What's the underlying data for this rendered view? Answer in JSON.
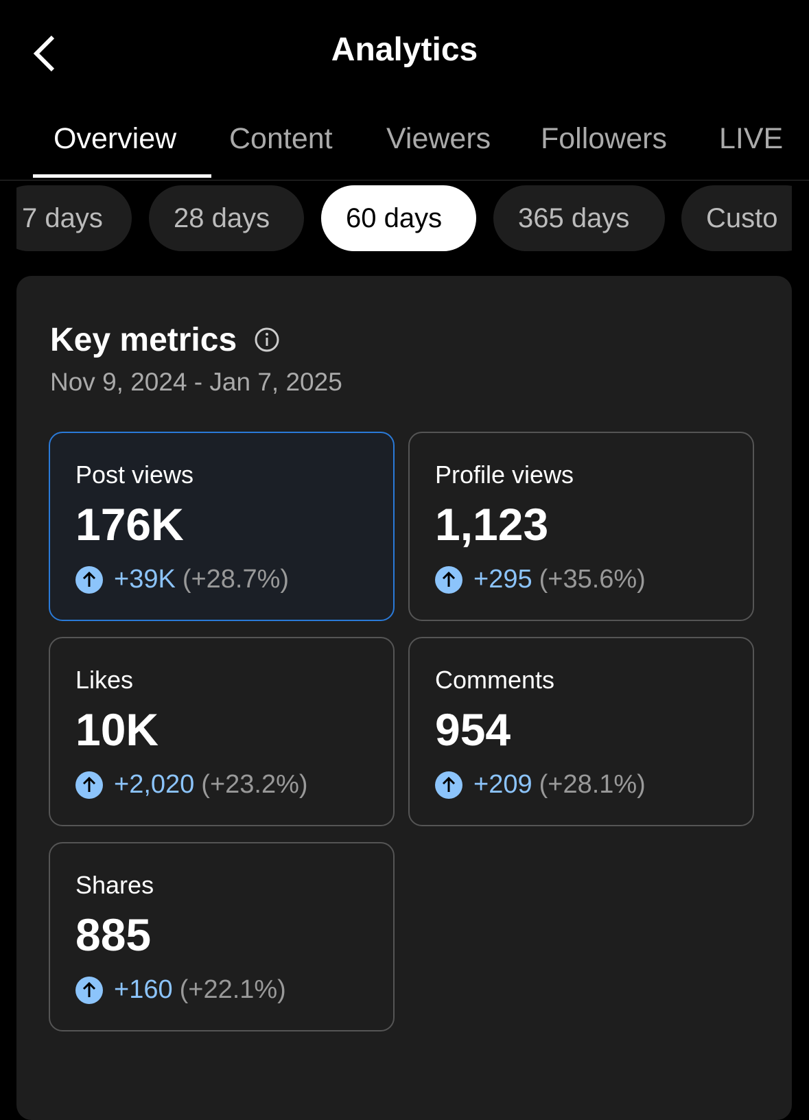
{
  "header": {
    "title": "Analytics"
  },
  "tabs": [
    "Overview",
    "Content",
    "Viewers",
    "Followers",
    "LIVE"
  ],
  "ranges": [
    "7 days",
    "28 days",
    "60 days",
    "365 days",
    "Custo"
  ],
  "section": {
    "title": "Key metrics",
    "date_range": "Nov 9, 2024 - Jan 7, 2025"
  },
  "metrics": [
    {
      "label": "Post views",
      "value": "176K",
      "change": "+39K",
      "percent": "(+28.7%)"
    },
    {
      "label": "Profile views",
      "value": "1,123",
      "change": "+295",
      "percent": "(+35.6%)"
    },
    {
      "label": "Likes",
      "value": "10K",
      "change": "+2,020",
      "percent": "(+23.2%)"
    },
    {
      "label": "Comments",
      "value": "954",
      "change": "+209",
      "percent": "(+28.1%)"
    },
    {
      "label": "Shares",
      "value": "885",
      "change": "+160",
      "percent": "(+22.1%)"
    }
  ]
}
